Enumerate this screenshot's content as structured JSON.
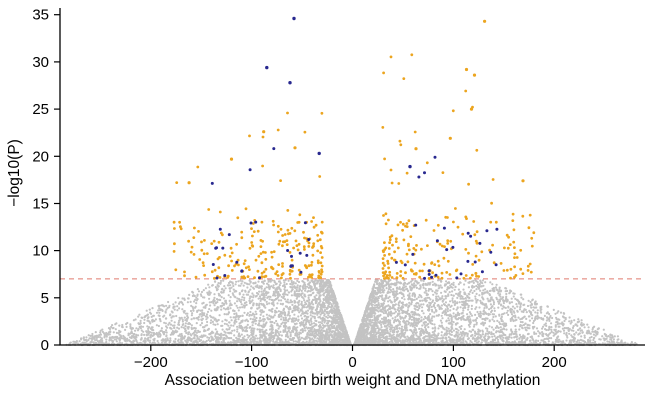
{
  "figure": {
    "background": "#ffffff",
    "axis_color": "#000000"
  },
  "chart_data": {
    "type": "scatter",
    "title": "",
    "xlabel": "Association between birth weight and DNA methylation",
    "ylabel": "−log10(P)",
    "xlim": [
      -290,
      290
    ],
    "ylim": [
      0,
      35.5
    ],
    "xticks": [
      -200,
      -100,
      0,
      100,
      200
    ],
    "xtick_labels": [
      "−200",
      "−100",
      "0",
      "100",
      "200"
    ],
    "yticks": [
      0,
      5,
      10,
      15,
      20,
      25,
      30,
      35
    ],
    "ytick_labels": [
      "0",
      "5",
      "10",
      "15",
      "20",
      "25",
      "30",
      "35"
    ],
    "grid": false,
    "legend": "none",
    "threshold_line": {
      "y": 7.0,
      "color": "#e07a6d",
      "dash": "5,4"
    },
    "point_colors": {
      "background": "#c3c3c3",
      "significant": "#eca51f",
      "highlighted": "#28288f"
    },
    "series": [
      {
        "name": "all-cpgs-nonsignificant",
        "color": "#c3c3c3",
        "n": 7200,
        "seed": 101,
        "model": "volcano_null",
        "y_max": 6.9,
        "y_pow": 2.0,
        "inner_base": 1.5,
        "inner_slope": 3.1,
        "inner_cap": 24,
        "outer_base": 285,
        "outer_slope": 22,
        "r_pow": 1.8,
        "spread_frac": 0.04,
        "spread_pow": 0.8,
        "point_r": 1.1
      },
      {
        "name": "significant-cpgs",
        "color": "#eca51f",
        "n": 430,
        "seed": 202,
        "model": "tail",
        "y0": 7.05,
        "frac_low": 0.85,
        "low_span": 6,
        "low_pow": 1.6,
        "high_start": 13,
        "high_span": 18,
        "high_pow": 2.5,
        "x_base": 30,
        "x_span": 150,
        "x_pow": 1.6,
        "point_r": 1.4
      },
      {
        "name": "highlighted-cpgs",
        "color": "#28288f",
        "n": 55,
        "seed": 303,
        "model": "tail",
        "y0": 7.05,
        "frac_low": 0.8,
        "low_span": 6,
        "low_pow": 1.5,
        "high_start": 13,
        "high_span": 9,
        "high_pow": 2.0,
        "x_base": 35,
        "x_span": 110,
        "x_pow": 1.4,
        "point_r": 1.5
      }
    ],
    "notable_points": [
      {
        "x": -58,
        "y": 34.6,
        "series": "highlighted-cpgs"
      },
      {
        "x": 131,
        "y": 34.3,
        "series": "significant-cpgs"
      },
      {
        "x": -85,
        "y": 29.4,
        "series": "highlighted-cpgs"
      },
      {
        "x": 113,
        "y": 29.2,
        "series": "significant-cpgs"
      },
      {
        "x": 121,
        "y": 28.6,
        "series": "significant-cpgs"
      },
      {
        "x": -62,
        "y": 27.8,
        "series": "highlighted-cpgs"
      },
      {
        "x": 118,
        "y": 25.0,
        "series": "significant-cpgs"
      },
      {
        "x": -88,
        "y": 22.6,
        "series": "significant-cpgs"
      },
      {
        "x": 97,
        "y": 21.9,
        "series": "significant-cpgs"
      },
      {
        "x": -33,
        "y": 20.3,
        "series": "highlighted-cpgs"
      },
      {
        "x": 63,
        "y": 20.8,
        "series": "significant-cpgs"
      },
      {
        "x": -57,
        "y": 20.9,
        "series": "significant-cpgs"
      },
      {
        "x": -120,
        "y": 19.7,
        "series": "significant-cpgs"
      },
      {
        "x": 169,
        "y": 17.4,
        "series": "significant-cpgs"
      },
      {
        "x": -162,
        "y": 17.2,
        "series": "significant-cpgs"
      },
      {
        "x": 57,
        "y": 18.9,
        "series": "highlighted-cpgs"
      }
    ]
  }
}
